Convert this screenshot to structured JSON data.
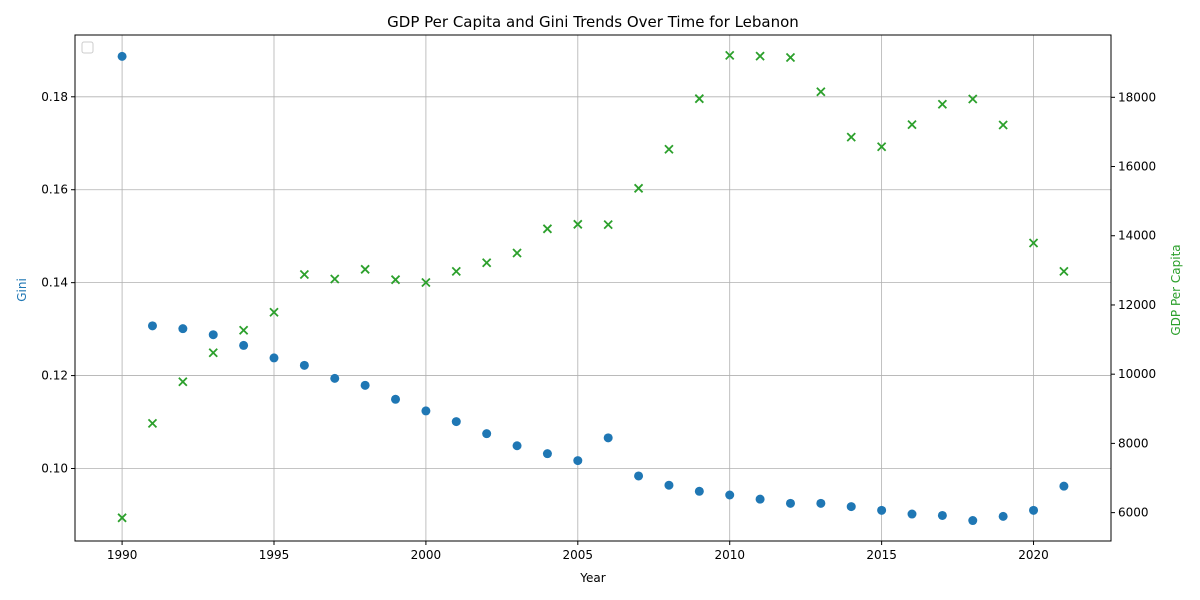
{
  "chart_data": {
    "type": "scatter",
    "title": "GDP Per Capita and Gini Trends Over Time for Lebanon",
    "xlabel": "Year",
    "ylabel_left": "Gini",
    "ylabel_right": "GDP Per Capita",
    "xlim": [
      1988.45,
      2022.55
    ],
    "ylim_left": [
      0.0844,
      0.1933
    ],
    "ylim_right": [
      5180,
      19800
    ],
    "x_ticks": [
      1990,
      1995,
      2000,
      2005,
      2010,
      2015,
      2020
    ],
    "y_left_ticks": [
      0.1,
      0.12,
      0.14,
      0.16,
      0.18
    ],
    "y_left_tick_labels": [
      "0.10",
      "0.12",
      "0.14",
      "0.16",
      "0.18"
    ],
    "y_right_ticks": [
      6000,
      8000,
      10000,
      12000,
      14000,
      16000,
      18000
    ],
    "grid": true,
    "legend": "top-left (empty)",
    "colors": {
      "gini": "#1f77b4",
      "gdp": "#2ca02c",
      "grid": "#b0b0b0",
      "axes": "#000000"
    },
    "series": [
      {
        "axis": "left",
        "marker": "circle",
        "x": [
          1990,
          1991,
          1992,
          1993,
          1994,
          1995,
          1996,
          1997,
          1998,
          1999,
          2000,
          2001,
          2002,
          2003,
          2004,
          2005,
          2006,
          2007,
          2008,
          2009,
          2010,
          2011,
          2012,
          2013,
          2014,
          2015,
          2016,
          2017,
          2018,
          2019,
          2020,
          2021
        ],
        "values": [
          0.1887,
          0.1307,
          0.1301,
          0.1288,
          0.1265,
          0.1238,
          0.1222,
          0.1194,
          0.1179,
          0.1149,
          0.1124,
          0.1101,
          0.1075,
          0.1049,
          0.1032,
          0.1017,
          0.1066,
          0.0984,
          0.0964,
          0.0951,
          0.0943,
          0.0934,
          0.0925,
          0.0925,
          0.0918,
          0.091,
          0.0902,
          0.0899,
          0.0888,
          0.0897,
          0.091,
          0.0962
        ]
      },
      {
        "axis": "right",
        "marker": "x",
        "x": [
          1990,
          1991,
          1992,
          1993,
          1994,
          1995,
          1996,
          1997,
          1998,
          1999,
          2000,
          2001,
          2002,
          2003,
          2004,
          2005,
          2006,
          2007,
          2008,
          2009,
          2010,
          2011,
          2012,
          2013,
          2014,
          2015,
          2016,
          2017,
          2018,
          2019,
          2020,
          2021
        ],
        "values": [
          5850,
          8580,
          9780,
          10620,
          11270,
          11790,
          12880,
          12750,
          13030,
          12730,
          12650,
          12970,
          13220,
          13500,
          14200,
          14330,
          14320,
          15370,
          16500,
          17960,
          19210,
          19190,
          19150,
          18160,
          16850,
          16570,
          17210,
          17800,
          17950,
          17200,
          13790,
          12970
        ]
      }
    ]
  }
}
